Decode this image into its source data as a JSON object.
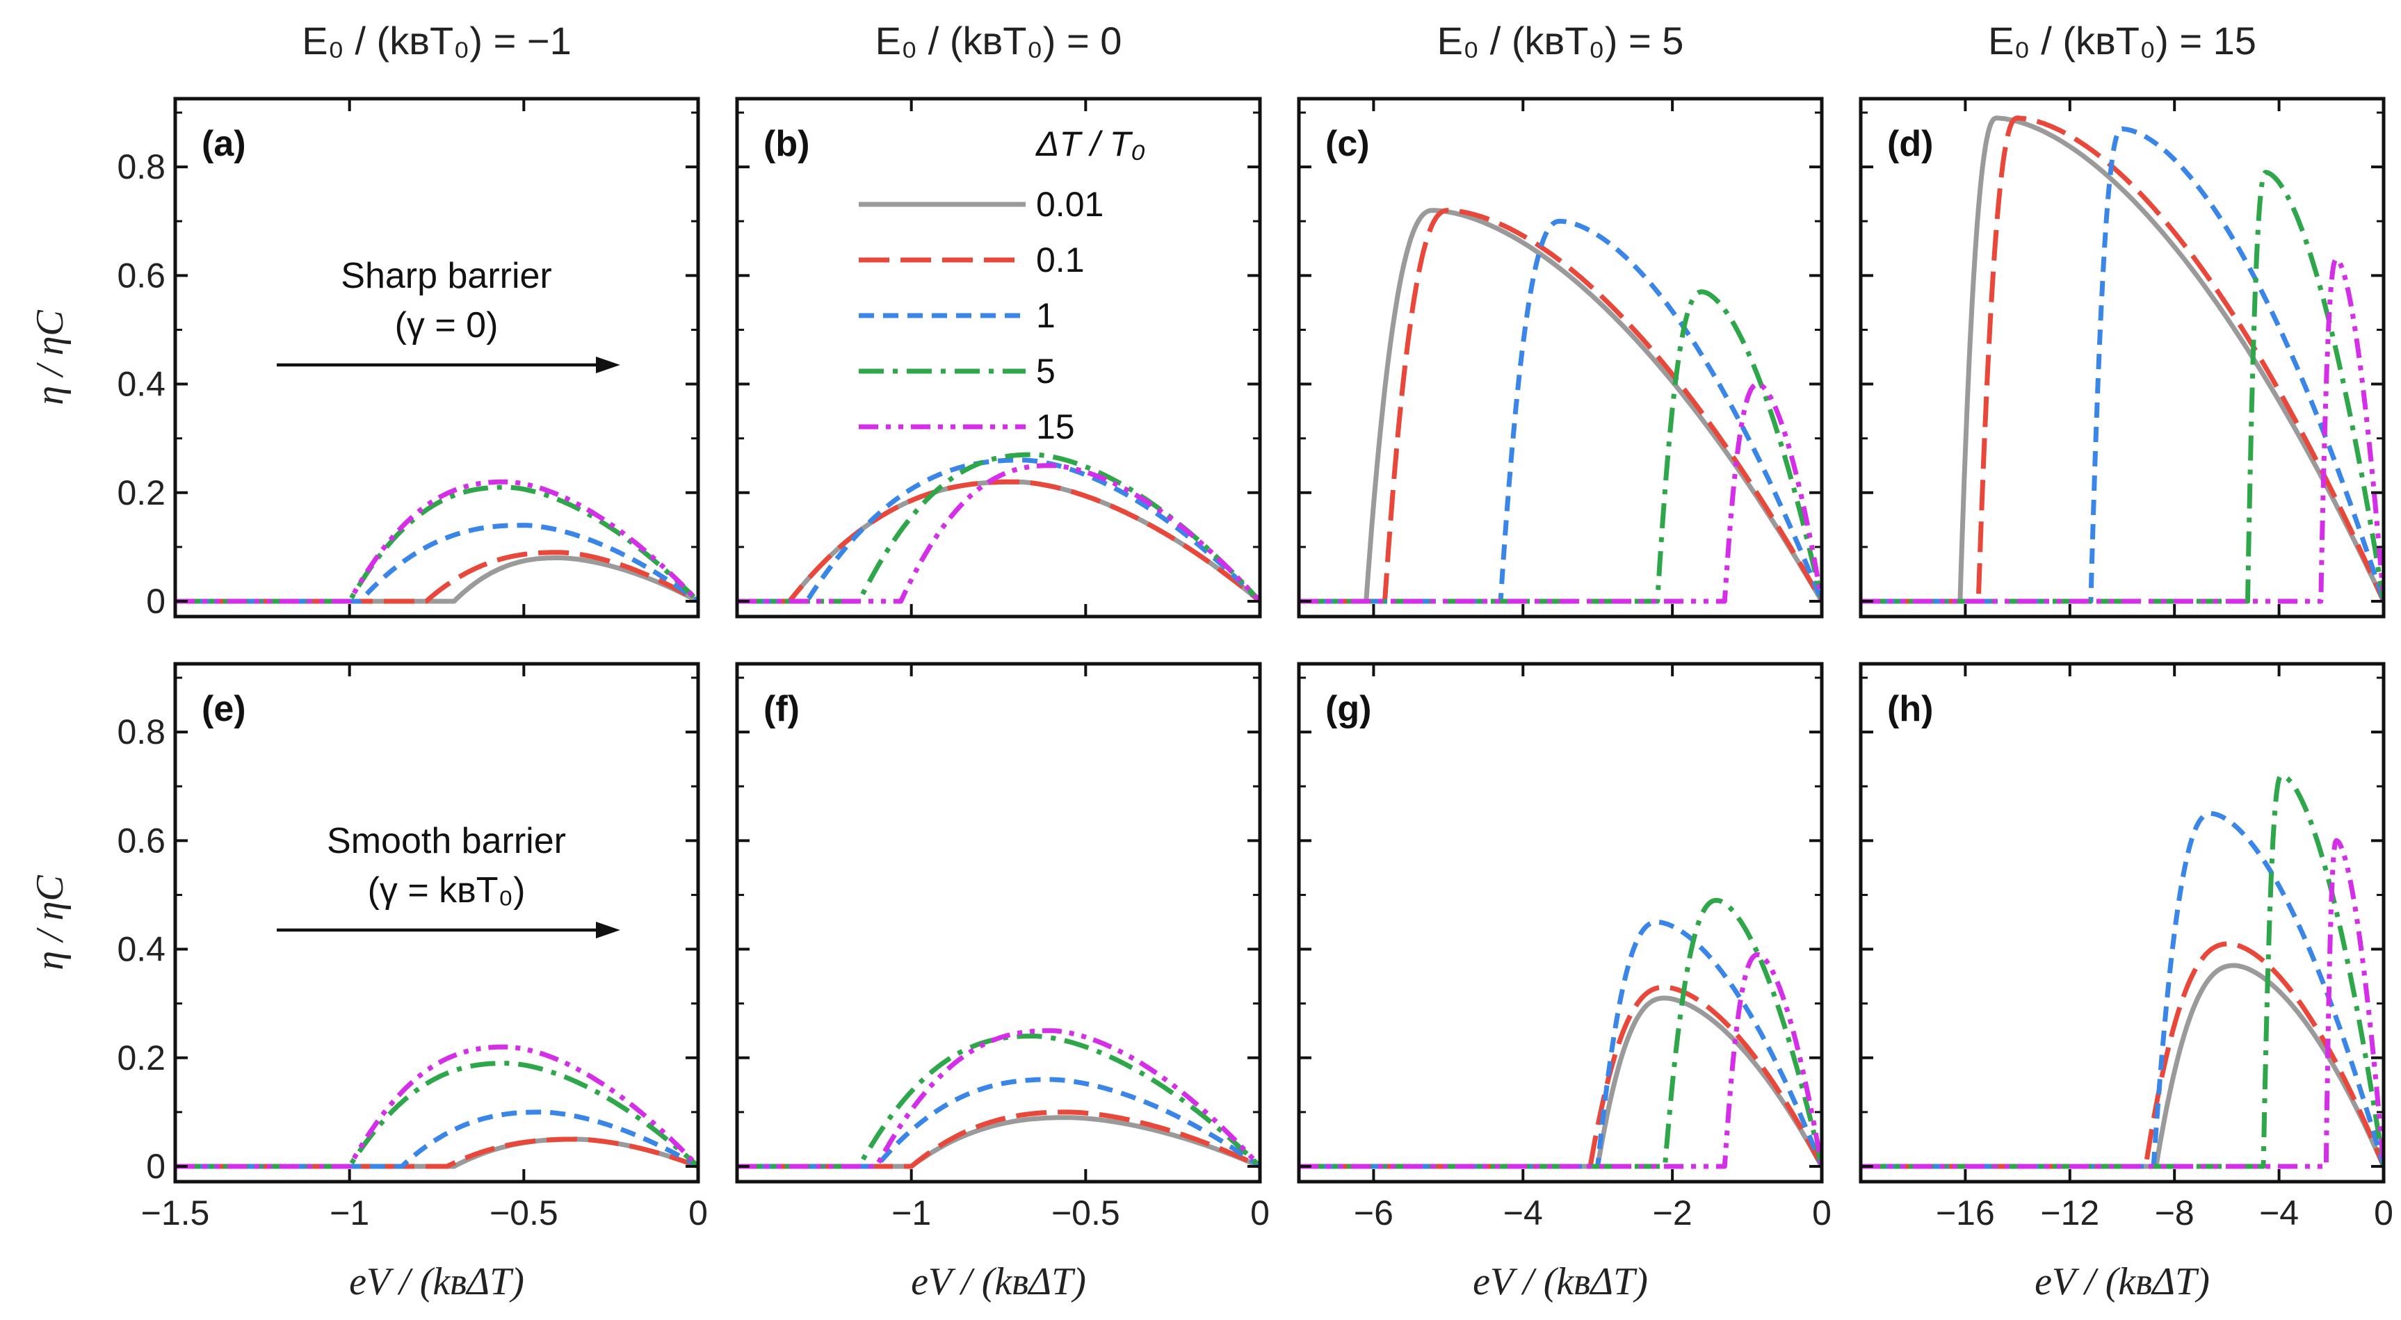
{
  "chart_data": {
    "type": "line",
    "column_titles": [
      "E₀ / (kʙT₀) = −1",
      "E₀ / (kʙT₀) = 0",
      "E₀ / (kʙT₀) = 5",
      "E₀ / (kʙT₀) = 15"
    ],
    "xlabel": "eV / (kʙΔT)",
    "ylabel": "η / ηC",
    "ylim": [
      0,
      0.9
    ],
    "yticks": [
      {
        "v": 0,
        "label": "0"
      },
      {
        "v": 0.2,
        "label": "0.2"
      },
      {
        "v": 0.4,
        "label": "0.4"
      },
      {
        "v": 0.6,
        "label": "0.6"
      },
      {
        "v": 0.8,
        "label": "0.8"
      }
    ],
    "legend": {
      "title": "ΔT / T₀",
      "entries": [
        {
          "label": "0.01",
          "color": "#9a9a9a",
          "dash": "solid"
        },
        {
          "label": "0.1",
          "color": "#e8473a",
          "dash": "long-dash"
        },
        {
          "label": "1",
          "color": "#3a86e8",
          "dash": "short-dash"
        },
        {
          "label": "5",
          "color": "#2ea64a",
          "dash": "dash-dot"
        },
        {
          "label": "15",
          "color": "#d42ee8",
          "dash": "dash-dot-dot"
        }
      ]
    },
    "columns": [
      {
        "xlim": [
          -1.5,
          0
        ],
        "xticks": [
          {
            "v": -1.5,
            "label": "−1.5"
          },
          {
            "v": -1,
            "label": "−1"
          },
          {
            "v": -0.5,
            "label": "−0.5"
          },
          {
            "v": 0,
            "label": "0"
          }
        ]
      },
      {
        "xlim": [
          -1.5,
          0
        ],
        "xticks": [
          {
            "v": -1,
            "label": "−1"
          },
          {
            "v": -0.5,
            "label": "−0.5"
          },
          {
            "v": 0,
            "label": "0"
          }
        ]
      },
      {
        "xlim": [
          -7,
          0
        ],
        "xticks": [
          {
            "v": -6,
            "label": "−6"
          },
          {
            "v": -4,
            "label": "−4"
          },
          {
            "v": -2,
            "label": "−2"
          },
          {
            "v": 0,
            "label": "0"
          }
        ]
      },
      {
        "xlim": [
          -20,
          0
        ],
        "xticks": [
          {
            "v": -16,
            "label": "−16"
          },
          {
            "v": -12,
            "label": "−12"
          },
          {
            "v": -8,
            "label": "−8"
          },
          {
            "v": -4,
            "label": "−4"
          },
          {
            "v": 0,
            "label": "0"
          }
        ]
      }
    ],
    "rows": [
      {
        "annotation": {
          "line1": "Sharp barrier",
          "line2": "(γ = 0)"
        }
      },
      {
        "annotation": {
          "line1": "Smooth barrier",
          "line2": "(γ = kʙT₀)"
        }
      }
    ],
    "panels": [
      {
        "label": "(a)",
        "row": 0,
        "col": 0,
        "series": [
          {
            "name": "0.01",
            "onset": -0.7,
            "peak_x": -0.4,
            "peak_y": 0.08
          },
          {
            "name": "0.1",
            "onset": -0.78,
            "peak_x": -0.4,
            "peak_y": 0.09
          },
          {
            "name": "1",
            "onset": -0.97,
            "peak_x": -0.5,
            "peak_y": 0.14
          },
          {
            "name": "5",
            "onset": -1.0,
            "peak_x": -0.55,
            "peak_y": 0.21
          },
          {
            "name": "15",
            "onset": -1.0,
            "peak_x": -0.55,
            "peak_y": 0.22
          }
        ]
      },
      {
        "label": "(b)",
        "row": 0,
        "col": 1,
        "series": [
          {
            "name": "0.01",
            "onset": -1.35,
            "peak_x": -0.7,
            "peak_y": 0.22
          },
          {
            "name": "0.1",
            "onset": -1.35,
            "peak_x": -0.7,
            "peak_y": 0.22
          },
          {
            "name": "1",
            "onset": -1.3,
            "peak_x": -0.68,
            "peak_y": 0.26
          },
          {
            "name": "5",
            "onset": -1.15,
            "peak_x": -0.65,
            "peak_y": 0.27
          },
          {
            "name": "15",
            "onset": -1.03,
            "peak_x": -0.6,
            "peak_y": 0.25
          }
        ]
      },
      {
        "label": "(c)",
        "row": 0,
        "col": 2,
        "series": [
          {
            "name": "0.01",
            "onset": -6.1,
            "peak_x": -5.2,
            "peak_y": 0.72
          },
          {
            "name": "0.1",
            "onset": -5.85,
            "peak_x": -5.0,
            "peak_y": 0.72
          },
          {
            "name": "1",
            "onset": -4.3,
            "peak_x": -3.5,
            "peak_y": 0.7
          },
          {
            "name": "5",
            "onset": -2.2,
            "peak_x": -1.6,
            "peak_y": 0.57
          },
          {
            "name": "15",
            "onset": -1.3,
            "peak_x": -0.85,
            "peak_y": 0.4
          }
        ]
      },
      {
        "label": "(d)",
        "row": 0,
        "col": 3,
        "series": [
          {
            "name": "0.01",
            "onset": -16.2,
            "peak_x": -14.8,
            "peak_y": 0.89
          },
          {
            "name": "0.1",
            "onset": -15.5,
            "peak_x": -14.0,
            "peak_y": 0.89
          },
          {
            "name": "1",
            "onset": -11.2,
            "peak_x": -10.0,
            "peak_y": 0.87
          },
          {
            "name": "5",
            "onset": -5.2,
            "peak_x": -4.5,
            "peak_y": 0.79
          },
          {
            "name": "15",
            "onset": -2.4,
            "peak_x": -1.8,
            "peak_y": 0.63
          }
        ]
      },
      {
        "label": "(e)",
        "row": 1,
        "col": 0,
        "series": [
          {
            "name": "0.01",
            "onset": -0.7,
            "peak_x": -0.35,
            "peak_y": 0.05
          },
          {
            "name": "0.1",
            "onset": -0.72,
            "peak_x": -0.35,
            "peak_y": 0.05
          },
          {
            "name": "1",
            "onset": -0.85,
            "peak_x": -0.45,
            "peak_y": 0.1
          },
          {
            "name": "5",
            "onset": -1.0,
            "peak_x": -0.55,
            "peak_y": 0.19
          },
          {
            "name": "15",
            "onset": -1.0,
            "peak_x": -0.55,
            "peak_y": 0.22
          }
        ]
      },
      {
        "label": "(f)",
        "row": 1,
        "col": 1,
        "series": [
          {
            "name": "0.01",
            "onset": -1.0,
            "peak_x": -0.55,
            "peak_y": 0.09
          },
          {
            "name": "0.1",
            "onset": -1.0,
            "peak_x": -0.55,
            "peak_y": 0.1
          },
          {
            "name": "1",
            "onset": -1.1,
            "peak_x": -0.6,
            "peak_y": 0.16
          },
          {
            "name": "5",
            "onset": -1.15,
            "peak_x": -0.65,
            "peak_y": 0.24
          },
          {
            "name": "15",
            "onset": -1.1,
            "peak_x": -0.6,
            "peak_y": 0.25
          }
        ]
      },
      {
        "label": "(g)",
        "row": 1,
        "col": 2,
        "series": [
          {
            "name": "0.01",
            "onset": -3.0,
            "peak_x": -2.1,
            "peak_y": 0.31
          },
          {
            "name": "0.1",
            "onset": -3.1,
            "peak_x": -2.1,
            "peak_y": 0.33
          },
          {
            "name": "1",
            "onset": -3.0,
            "peak_x": -2.2,
            "peak_y": 0.45
          },
          {
            "name": "5",
            "onset": -2.1,
            "peak_x": -1.4,
            "peak_y": 0.49
          },
          {
            "name": "15",
            "onset": -1.3,
            "peak_x": -0.85,
            "peak_y": 0.39
          }
        ]
      },
      {
        "label": "(h)",
        "row": 1,
        "col": 3,
        "series": [
          {
            "name": "0.01",
            "onset": -8.7,
            "peak_x": -5.7,
            "peak_y": 0.37
          },
          {
            "name": "0.1",
            "onset": -9.1,
            "peak_x": -5.9,
            "peak_y": 0.41
          },
          {
            "name": "1",
            "onset": -8.8,
            "peak_x": -6.6,
            "peak_y": 0.65
          },
          {
            "name": "5",
            "onset": -4.6,
            "peak_x": -3.9,
            "peak_y": 0.72
          },
          {
            "name": "15",
            "onset": -2.2,
            "peak_x": -1.8,
            "peak_y": 0.6
          }
        ]
      }
    ]
  }
}
